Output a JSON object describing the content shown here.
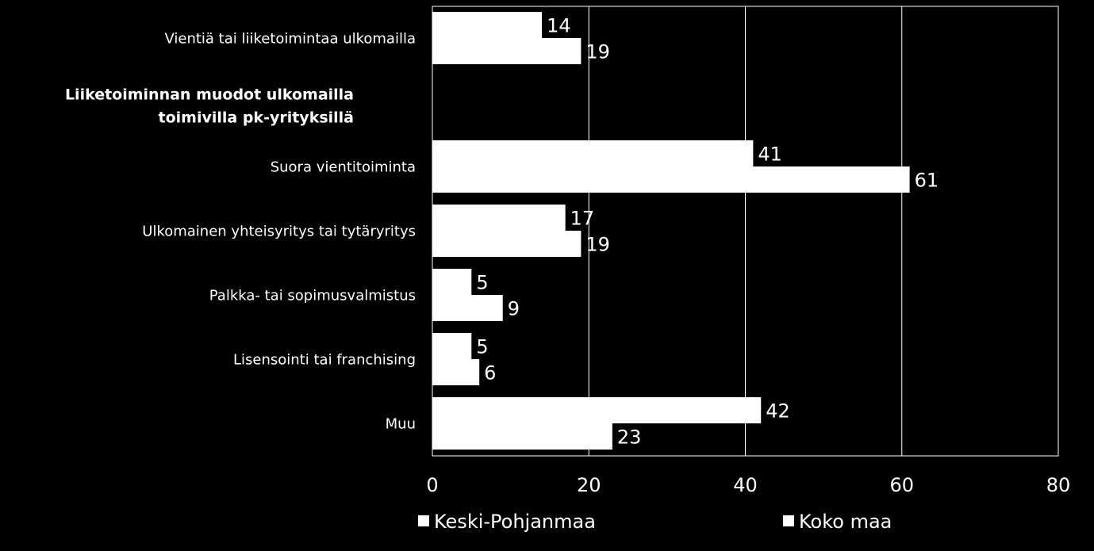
{
  "chart_data": {
    "type": "bar",
    "orientation": "horizontal",
    "section_heading": [
      "Liiketoiminnan muodot ulkomailla",
      "toimivilla pk-yrityksillä"
    ],
    "categories": [
      "Vientiä tai liiketoimintaa ulkomailla",
      "",
      "Suora vientitoiminta",
      "Ulkomainen yhteisyritys tai tytäryritys",
      "Palkka- tai sopimusvalmistus",
      "Lisensointi tai franchising",
      "Muu"
    ],
    "series": [
      {
        "name": "Keski-Pohjanmaa",
        "values": [
          14,
          null,
          41,
          17,
          5,
          5,
          42
        ]
      },
      {
        "name": "Koko maa",
        "values": [
          19,
          null,
          61,
          19,
          9,
          6,
          23
        ]
      }
    ],
    "xlim": [
      0,
      80
    ],
    "xticks": [
      "0",
      "20",
      "40",
      "60",
      "80"
    ],
    "grid": true,
    "legend_position": "bottom",
    "colors": {
      "background": "#000000",
      "bar": "#ffffff",
      "text": "#ffffff",
      "grid": "#ffffff"
    }
  }
}
